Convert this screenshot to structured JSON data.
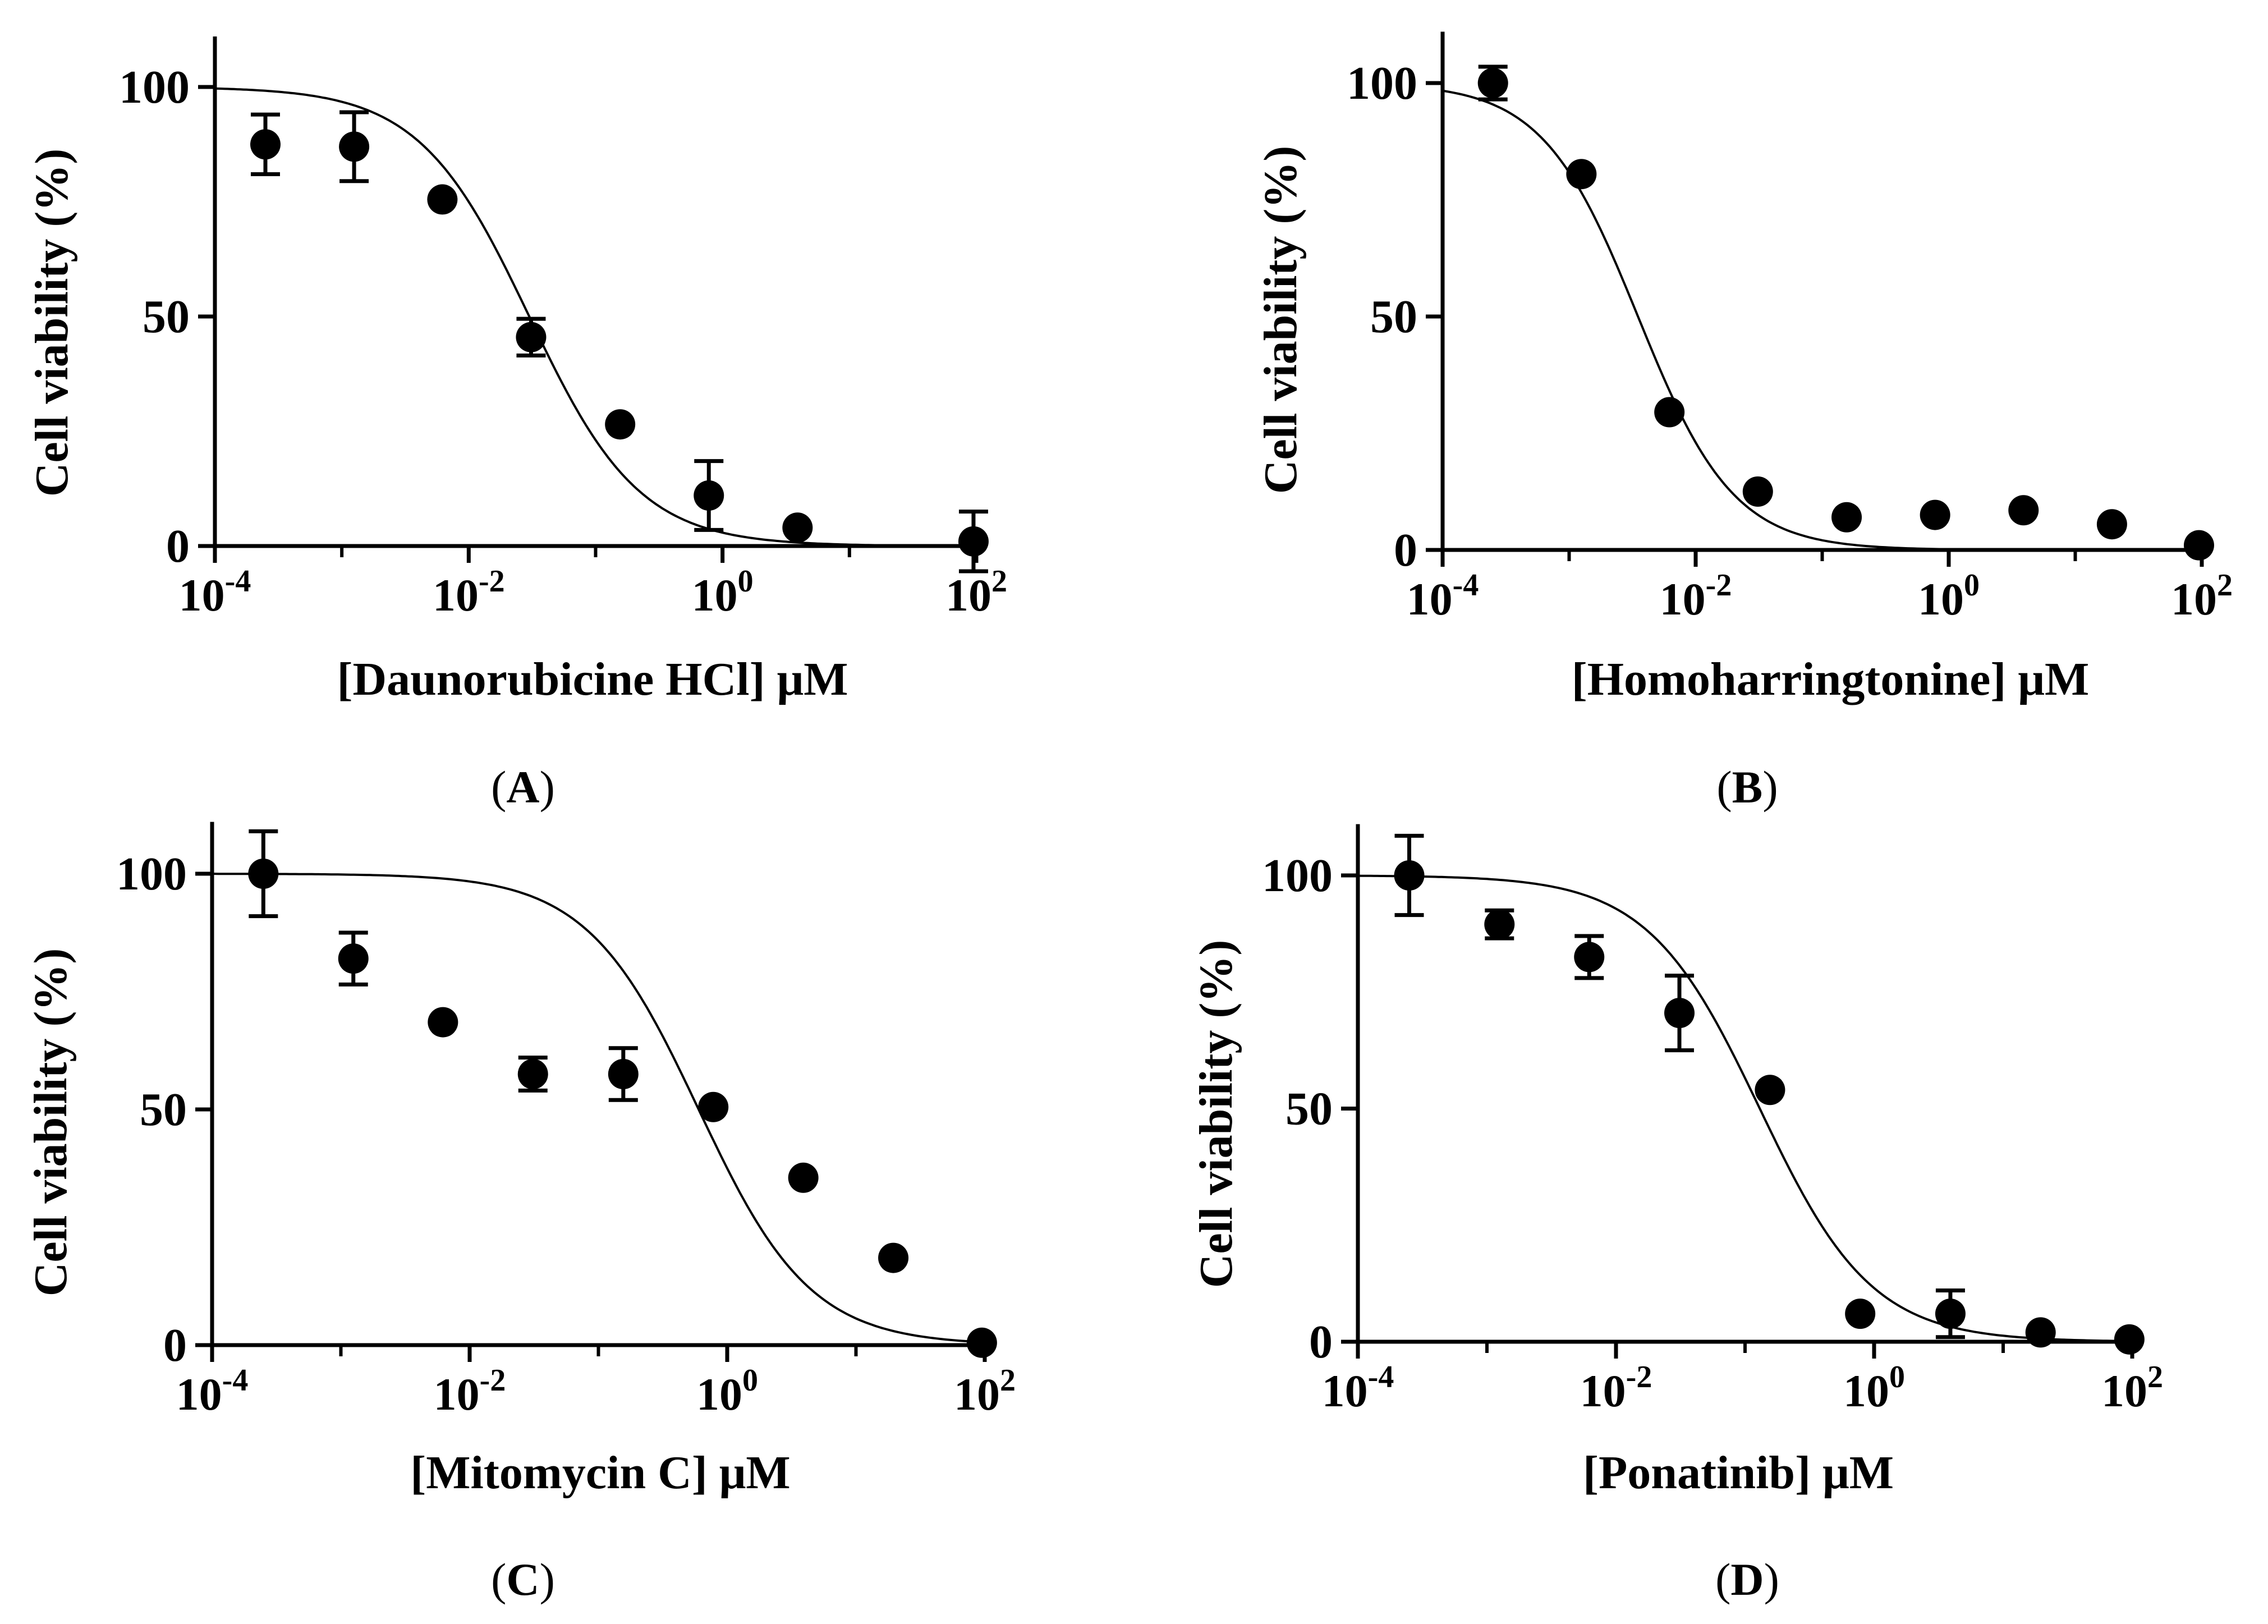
{
  "chart_data": [
    {
      "panel": "A",
      "type": "scatter",
      "xlabel": "[Daunorubicine HCl] μM",
      "ylabel": "Cell viability (%)",
      "xscale": "log",
      "xlim": [
        0.0001,
        100
      ],
      "ylim": [
        0,
        100
      ],
      "xticks": [
        {
          "value": 0.0001,
          "base": "10",
          "exp": "-4"
        },
        {
          "value": 0.01,
          "base": "10",
          "exp": "-2"
        },
        {
          "value": 1,
          "base": "10",
          "exp": "0"
        },
        {
          "value": 100,
          "base": "10",
          "exp": "2"
        }
      ],
      "yticks": [
        0,
        50,
        100
      ],
      "points": [
        {
          "x": 0.00025,
          "y": 87.5,
          "err": 6.5
        },
        {
          "x": 0.00125,
          "y": 87,
          "err": 7.5
        },
        {
          "x": 0.0062,
          "y": 75.5,
          "err": 0
        },
        {
          "x": 0.031,
          "y": 45.5,
          "err": 4
        },
        {
          "x": 0.156,
          "y": 26.5,
          "err": 0
        },
        {
          "x": 0.78,
          "y": 11,
          "err": 7.5
        },
        {
          "x": 3.9,
          "y": 4,
          "err": 0
        },
        {
          "x": 95,
          "y": 1,
          "err": 6.5
        }
      ],
      "fit": {
        "top": 100,
        "bottom": 0,
        "ic50": 0.03,
        "hill": 1.0
      }
    },
    {
      "panel": "B",
      "type": "scatter",
      "xlabel": "[Homoharringtonine] μM",
      "ylabel": "Cell viability (%)",
      "xscale": "log",
      "xlim": [
        0.0001,
        100
      ],
      "ylim": [
        0,
        100
      ],
      "xticks": [
        {
          "value": 0.0001,
          "base": "10",
          "exp": "-4"
        },
        {
          "value": 0.01,
          "base": "10",
          "exp": "-2"
        },
        {
          "value": 1,
          "base": "10",
          "exp": "0"
        },
        {
          "value": 100,
          "base": "10",
          "exp": "2"
        }
      ],
      "yticks": [
        0,
        50,
        100
      ],
      "points": [
        {
          "x": 0.00025,
          "y": 100,
          "err": 3.5
        },
        {
          "x": 0.00125,
          "y": 80.5,
          "err": 0
        },
        {
          "x": 0.0062,
          "y": 29.5,
          "err": 0
        },
        {
          "x": 0.031,
          "y": 12.5,
          "err": 0
        },
        {
          "x": 0.156,
          "y": 7,
          "err": 0
        },
        {
          "x": 0.78,
          "y": 7.5,
          "err": 0
        },
        {
          "x": 3.9,
          "y": 8.5,
          "err": 0
        },
        {
          "x": 19.5,
          "y": 5.5,
          "err": 0
        },
        {
          "x": 95,
          "y": 1,
          "err": 0
        }
      ],
      "fit": {
        "top": 100,
        "bottom": 0,
        "ic50": 0.0035,
        "hill": 1.15
      }
    },
    {
      "panel": "C",
      "type": "scatter",
      "xlabel": "[Mitomycin C] μM",
      "ylabel": "Cell viability (%)",
      "xscale": "log",
      "xlim": [
        0.0001,
        100
      ],
      "ylim": [
        0,
        100
      ],
      "xticks": [
        {
          "value": 0.0001,
          "base": "10",
          "exp": "-4"
        },
        {
          "value": 0.01,
          "base": "10",
          "exp": "-2"
        },
        {
          "value": 1,
          "base": "10",
          "exp": "0"
        },
        {
          "value": 100,
          "base": "10",
          "exp": "2"
        }
      ],
      "yticks": [
        0,
        50,
        100
      ],
      "points": [
        {
          "x": 0.00025,
          "y": 100,
          "err": 9
        },
        {
          "x": 0.00125,
          "y": 82,
          "err": 5.5
        },
        {
          "x": 0.0062,
          "y": 68.5,
          "err": 0
        },
        {
          "x": 0.031,
          "y": 57.5,
          "err": 3.5
        },
        {
          "x": 0.156,
          "y": 57.5,
          "err": 5.5
        },
        {
          "x": 0.78,
          "y": 50.5,
          "err": 0
        },
        {
          "x": 3.9,
          "y": 35.5,
          "err": 0
        },
        {
          "x": 19.5,
          "y": 18.5,
          "err": 0
        },
        {
          "x": 95,
          "y": 0.5,
          "err": 0
        }
      ],
      "fit": {
        "top": 100,
        "bottom": 0,
        "ic50": 0.6,
        "hill": 1.0
      }
    },
    {
      "panel": "D",
      "type": "scatter",
      "xlabel": "[Ponatinib] μM",
      "ylabel": "Cell viability (%)",
      "xscale": "log",
      "xlim": [
        0.0001,
        100
      ],
      "ylim": [
        0,
        100
      ],
      "xticks": [
        {
          "value": 0.0001,
          "base": "10",
          "exp": "-4"
        },
        {
          "value": 0.01,
          "base": "10",
          "exp": "-2"
        },
        {
          "value": 1,
          "base": "10",
          "exp": "0"
        },
        {
          "value": 100,
          "base": "10",
          "exp": "2"
        }
      ],
      "yticks": [
        0,
        50,
        100
      ],
      "points": [
        {
          "x": 0.00025,
          "y": 100,
          "err": 8.5
        },
        {
          "x": 0.00125,
          "y": 89.5,
          "err": 3
        },
        {
          "x": 0.0062,
          "y": 82.5,
          "err": 4.5
        },
        {
          "x": 0.031,
          "y": 70.5,
          "err": 8
        },
        {
          "x": 0.156,
          "y": 54,
          "err": 0
        },
        {
          "x": 0.78,
          "y": 6,
          "err": 0
        },
        {
          "x": 3.9,
          "y": 6,
          "err": 5
        },
        {
          "x": 19.5,
          "y": 2,
          "err": 0
        },
        {
          "x": 95,
          "y": 0.5,
          "err": 0
        }
      ],
      "fit": {
        "top": 100,
        "bottom": 0,
        "ic50": 0.13,
        "hill": 1.0
      }
    }
  ],
  "captions": [
    {
      "open": "(",
      "letter": "A",
      "close": ")"
    },
    {
      "open": "(",
      "letter": "B",
      "close": ")"
    },
    {
      "open": "(",
      "letter": "C",
      "close": ")"
    },
    {
      "open": "(",
      "letter": "D",
      "close": ")"
    }
  ]
}
